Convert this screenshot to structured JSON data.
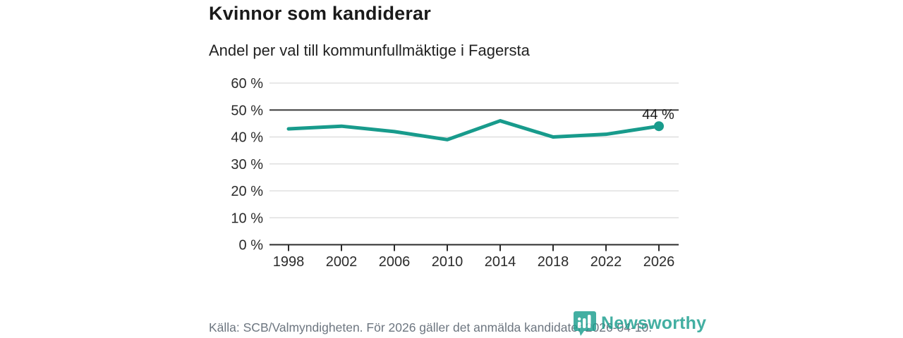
{
  "header": {
    "title": "Kvinnor som kandiderar",
    "subtitle": "Andel per val till kommunfullmäktige i Fagersta"
  },
  "chart_data": {
    "type": "line",
    "title": "Kvinnor som kandiderar",
    "subtitle": "Andel per val till kommunfullmäktige i Fagersta",
    "categories": [
      "1998",
      "2002",
      "2006",
      "2010",
      "2014",
      "2018",
      "2022",
      "2026"
    ],
    "values": [
      43,
      44,
      42,
      39,
      46,
      40,
      41,
      44
    ],
    "unit": "%",
    "ylim": [
      0,
      60
    ],
    "y_ticks": [
      0,
      10,
      20,
      30,
      40,
      50,
      60
    ],
    "y_tick_suffix": " %",
    "grid": true,
    "reference_line_y": 50,
    "last_value_label": "44 %",
    "line_color": "#189b8c",
    "point_color": "#189b8c",
    "legend": "none"
  },
  "footer": {
    "source": "Källa: SCB/Valmyndigheten. För 2026 gäller det anmälda kandidater 2026-04-10."
  },
  "brand": {
    "label": "Newsworthy",
    "color": "#1b9e8e",
    "icon": "newsworthy-chart-bubble-icon"
  }
}
